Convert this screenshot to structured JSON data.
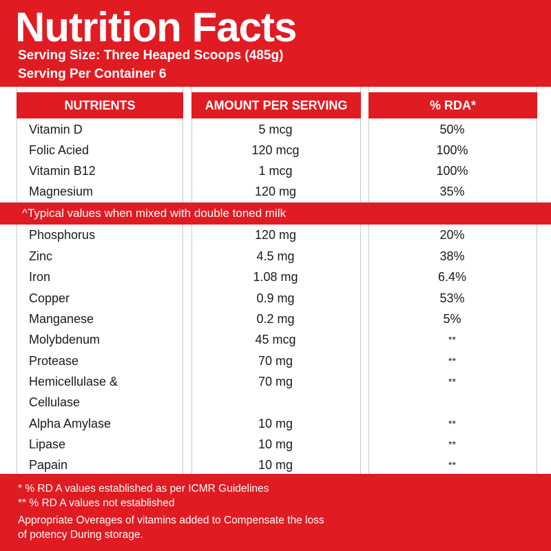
{
  "header": {
    "title": "Nutrition Facts",
    "serving_size": "Serving Size: Three Heaped Scoops (485g)",
    "servings_per_container": "Serving Per Container 6"
  },
  "table": {
    "columns": [
      "NUTRIENTS",
      "AMOUNT PER SERVING",
      "% RDA*"
    ],
    "rows_top": [
      {
        "nutrient": "Vitamin D",
        "amount": "5 mcg",
        "rda": "50%"
      },
      {
        "nutrient": "Folic Acied",
        "amount": "120 mcg",
        "rda": "100%"
      },
      {
        "nutrient": "Vitamin B12",
        "amount": "1 mcg",
        "rda": "100%"
      },
      {
        "nutrient": "Magnesium",
        "amount": "120 mg",
        "rda": "35%"
      }
    ],
    "note": "^Typical values when mixed with double toned milk",
    "rows_bottom": [
      {
        "nutrient": "Phosphorus",
        "amount": "120 mg",
        "rda": "20%"
      },
      {
        "nutrient": "Zinc",
        "amount": "4.5 mg",
        "rda": "38%"
      },
      {
        "nutrient": "Iron",
        "amount": "1.08 mg",
        "rda": "6.4%"
      },
      {
        "nutrient": "Copper",
        "amount": "0.9 mg",
        "rda": "53%"
      },
      {
        "nutrient": "Manganese",
        "amount": "0.2 mg",
        "rda": "5%"
      },
      {
        "nutrient": "Molybdenum",
        "amount": "45 mcg",
        "rda": "**"
      },
      {
        "nutrient": "Protease",
        "amount": "70 mg",
        "rda": "**"
      },
      {
        "nutrient": "Hemicellulase &",
        "nutrient_line2": "Cellulase",
        "amount": "70 mg",
        "rda": "**"
      },
      {
        "nutrient": "Alpha Amylase",
        "amount": "10 mg",
        "rda": "**"
      },
      {
        "nutrient": "Lipase",
        "amount": "10 mg",
        "rda": "**"
      },
      {
        "nutrient": "Papain",
        "amount": "10 mg",
        "rda": "**"
      }
    ]
  },
  "footnotes": {
    "line1": "* % RD A values established as per ICMR Guidelines",
    "line2": "** % RD A values not established",
    "line3": "Appropriate Overages of vitamins added to Compensate the loss",
    "line4": "of potency During storage."
  }
}
